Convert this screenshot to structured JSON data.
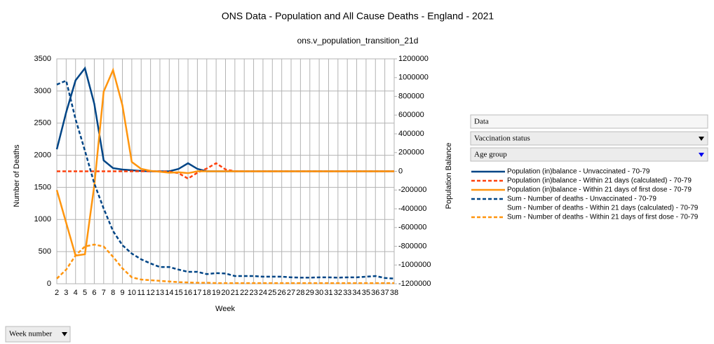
{
  "chart_data": {
    "type": "line",
    "title": "ONS Data - Population and All Cause Deaths - England - 2021",
    "subtitle": "ons.v_population_transition_21d",
    "ylabel": "Number of Deaths",
    "y2label": "Population Balance",
    "xlabel": "Week",
    "x": [
      2,
      3,
      4,
      5,
      6,
      7,
      8,
      9,
      10,
      11,
      12,
      13,
      14,
      15,
      16,
      17,
      18,
      19,
      20,
      21,
      22,
      23,
      24,
      25,
      26,
      27,
      28,
      29,
      30,
      31,
      32,
      33,
      34,
      35,
      36,
      37,
      38
    ],
    "xlim": [
      2,
      38
    ],
    "ylim": [
      0,
      3500
    ],
    "yticks": [
      0,
      500,
      1000,
      1500,
      2000,
      2500,
      3000,
      3500
    ],
    "y2lim": [
      -1200000,
      1200000
    ],
    "y2ticks": [
      -1200000,
      -1000000,
      -800000,
      -600000,
      -400000,
      -200000,
      0,
      200000,
      400000,
      600000,
      800000,
      1000000,
      1200000
    ],
    "grid": true,
    "legend": "right",
    "series": [
      {
        "name": "Population (in)balance - Unvaccinated - 70-79",
        "color": "#004586",
        "dash": false,
        "axis": "y2",
        "values": [
          235000,
          630000,
          970000,
          1100000,
          720000,
          116000,
          34000,
          19000,
          11000,
          4000,
          0,
          0,
          0,
          26000,
          86000,
          26000,
          0,
          0,
          0,
          0,
          0,
          0,
          0,
          0,
          0,
          0,
          0,
          0,
          0,
          0,
          0,
          0,
          0,
          0,
          0,
          0,
          0
        ]
      },
      {
        "name": "Population (in)balance - Within 21 days (calculated) - 70-79",
        "color": "#ff420e",
        "dash": true,
        "axis": "y2",
        "values": [
          0,
          0,
          0,
          0,
          0,
          0,
          0,
          0,
          0,
          0,
          0,
          0,
          -5000,
          -20000,
          -78000,
          -15000,
          30000,
          86000,
          20000,
          0,
          0,
          0,
          0,
          0,
          0,
          0,
          0,
          0,
          0,
          0,
          0,
          0,
          0,
          0,
          0,
          0,
          0
        ]
      },
      {
        "name": "Population (in)balance - Within 21 days of first dose - 70-79",
        "color": "#ff950e",
        "dash": false,
        "axis": "y2",
        "values": [
          -200000,
          -550000,
          -900000,
          -885000,
          -150000,
          850000,
          1080000,
          705000,
          100000,
          26000,
          5000,
          -5000,
          -15000,
          -10000,
          -20000,
          0,
          0,
          0,
          0,
          0,
          0,
          0,
          0,
          0,
          0,
          0,
          0,
          0,
          0,
          0,
          0,
          0,
          0,
          0,
          0,
          0,
          0
        ]
      },
      {
        "name": "Sum - Number of deaths - Unvaccinated - 70-79",
        "color": "#004586",
        "dash": true,
        "axis": "y",
        "values": [
          3100,
          3160,
          2560,
          2070,
          1560,
          1170,
          820,
          600,
          470,
          380,
          316,
          260,
          260,
          220,
          185,
          185,
          150,
          165,
          160,
          120,
          120,
          120,
          110,
          110,
          110,
          100,
          95,
          95,
          100,
          100,
          95,
          100,
          100,
          110,
          120,
          90,
          80
        ]
      },
      {
        "name": "Sum - Number of deaths - Within 21 days (calculated) - 70-79",
        "color": null,
        "dash": true,
        "axis": "y",
        "values": [
          null,
          null,
          null,
          null,
          null,
          null,
          null,
          null,
          null,
          null,
          null,
          null,
          null,
          null,
          null,
          null,
          null,
          null,
          null,
          null,
          null,
          null,
          null,
          null,
          null,
          null,
          null,
          null,
          null,
          null,
          null,
          null,
          null,
          null,
          null,
          null,
          null
        ]
      },
      {
        "name": "Sum - Number of deaths - Within 21 days of first dose - 70-79",
        "color": "#ff950e",
        "dash": true,
        "axis": "y",
        "values": [
          80,
          220,
          440,
          580,
          610,
          580,
          420,
          240,
          100,
          65,
          55,
          45,
          35,
          25,
          20,
          15,
          15,
          10,
          10,
          10,
          10,
          10,
          10,
          10,
          10,
          10,
          10,
          10,
          10,
          10,
          10,
          10,
          10,
          10,
          10,
          10,
          10
        ]
      }
    ]
  },
  "controls": {
    "data_field": "Data",
    "column_fields": [
      "Vaccination status",
      "Age group"
    ],
    "row_field": "Week number"
  }
}
